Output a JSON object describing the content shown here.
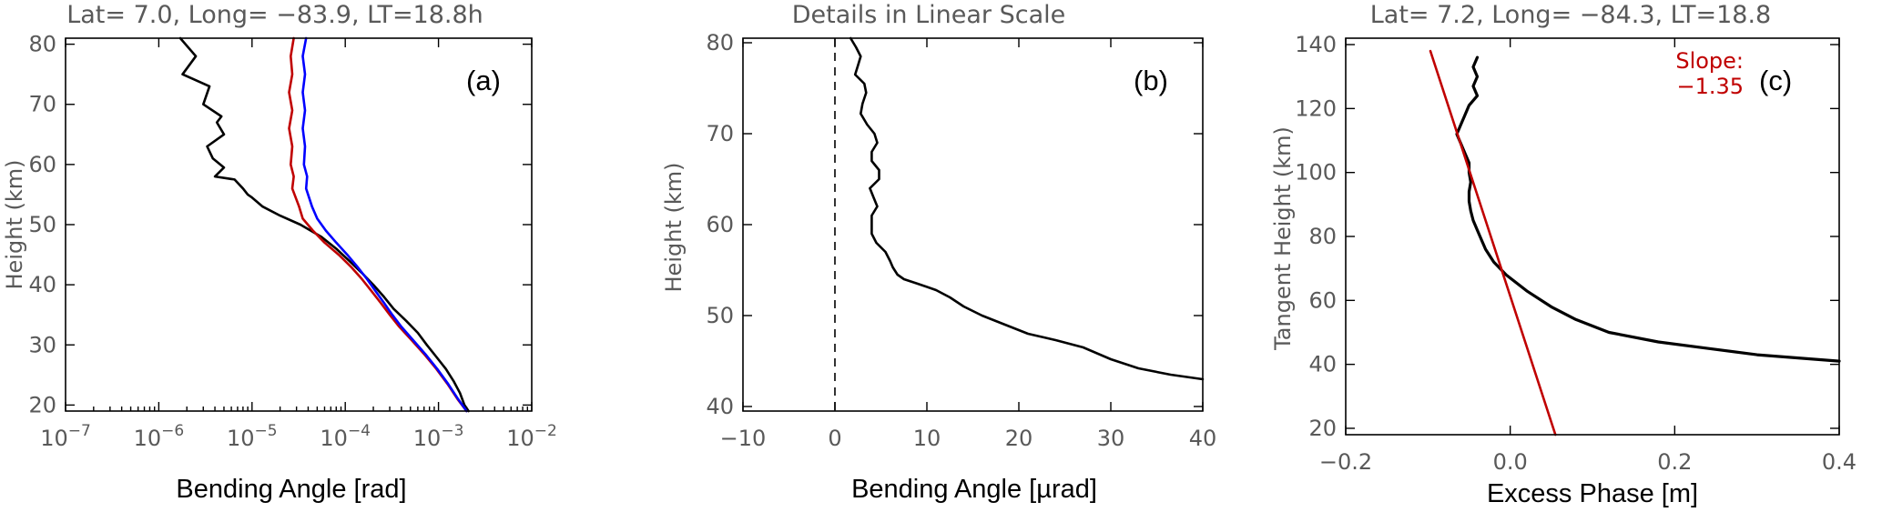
{
  "colors": {
    "black": "#000000",
    "red": "#c00000",
    "blue": "#0000ff",
    "grey_text": "#595959"
  },
  "chart_data": [
    {
      "type": "line",
      "title": "Lat= 7.0, Long= −83.9, LT=18.8h",
      "panel_label": "(a)",
      "xlabel": "Bending Angle [rad]",
      "ylabel": "Height (km)",
      "xscale": "log",
      "xlim": [
        1e-07,
        0.01
      ],
      "ylim": [
        19,
        81
      ],
      "x_ticks": [
        1e-07,
        1e-06,
        1e-05,
        0.0001,
        0.001,
        0.01
      ],
      "x_tick_labels": [
        {
          "base": "10",
          "exp": "−7"
        },
        {
          "base": "10",
          "exp": "−6"
        },
        {
          "base": "10",
          "exp": "−5"
        },
        {
          "base": "10",
          "exp": "−4"
        },
        {
          "base": "10",
          "exp": "−3"
        },
        {
          "base": "10",
          "exp": "−2"
        }
      ],
      "y_ticks": [
        20,
        30,
        40,
        50,
        60,
        70,
        80
      ],
      "y_tick_labels": [
        "20",
        "30",
        "40",
        "50",
        "60",
        "70",
        "80"
      ],
      "series": [
        {
          "color": "black",
          "points": [
            [
              1.7e-06,
              81
            ],
            [
              2.5e-06,
              78
            ],
            [
              1.8e-06,
              75
            ],
            [
              3.5e-06,
              73
            ],
            [
              3e-06,
              70
            ],
            [
              4.7e-06,
              68
            ],
            [
              4.2e-06,
              67
            ],
            [
              5e-06,
              65
            ],
            [
              3.3e-06,
              63
            ],
            [
              3.8e-06,
              61
            ],
            [
              5e-06,
              59.5
            ],
            [
              4e-06,
              58
            ],
            [
              6.5e-06,
              57.5
            ],
            [
              8e-06,
              56
            ],
            [
              9e-06,
              55
            ],
            [
              1e-05,
              54.5
            ],
            [
              1.3e-05,
              53
            ],
            [
              2e-05,
              51.5
            ],
            [
              3.3e-05,
              50
            ],
            [
              5.5e-05,
              48
            ],
            [
              8e-05,
              46
            ],
            [
              0.00011,
              44
            ],
            [
              0.00015,
              42
            ],
            [
              0.0002,
              40
            ],
            [
              0.00026,
              38
            ],
            [
              0.00033,
              36
            ],
            [
              0.00045,
              34
            ],
            [
              0.0006,
              32
            ],
            [
              0.00075,
              30
            ],
            [
              0.00095,
              28
            ],
            [
              0.0012,
              26
            ],
            [
              0.00145,
              24
            ],
            [
              0.0017,
              22
            ],
            [
              0.0019,
              20
            ],
            [
              0.0021,
              19
            ]
          ]
        },
        {
          "color": "red",
          "points": [
            [
              2.8e-05,
              81
            ],
            [
              2.6e-05,
              78
            ],
            [
              2.7e-05,
              75
            ],
            [
              2.5e-05,
              72
            ],
            [
              2.7e-05,
              69
            ],
            [
              2.5e-05,
              66
            ],
            [
              2.7e-05,
              63
            ],
            [
              2.6e-05,
              60
            ],
            [
              2.8e-05,
              58
            ],
            [
              2.7e-05,
              56
            ],
            [
              3.2e-05,
              53
            ],
            [
              3.5e-05,
              51
            ],
            [
              4.5e-05,
              49
            ],
            [
              6e-05,
              47
            ],
            [
              8.5e-05,
              45
            ],
            [
              0.000115,
              43
            ],
            [
              0.00015,
              41
            ],
            [
              0.00019,
              39
            ],
            [
              0.00024,
              37
            ],
            [
              0.0003,
              35
            ],
            [
              0.00038,
              33
            ],
            [
              0.0005,
              31
            ],
            [
              0.0007,
              28.5
            ],
            [
              0.00095,
              26
            ],
            [
              0.00125,
              23.5
            ],
            [
              0.0016,
              21
            ],
            [
              0.002,
              19
            ]
          ]
        },
        {
          "color": "blue",
          "points": [
            [
              3.8e-05,
              81
            ],
            [
              3.5e-05,
              78
            ],
            [
              3.7e-05,
              75
            ],
            [
              3.5e-05,
              72
            ],
            [
              3.7e-05,
              69
            ],
            [
              3.5e-05,
              66
            ],
            [
              3.7e-05,
              63
            ],
            [
              3.6e-05,
              60
            ],
            [
              3.9e-05,
              58
            ],
            [
              3.8e-05,
              56
            ],
            [
              4.4e-05,
              53
            ],
            [
              5e-05,
              51
            ],
            [
              6.2e-05,
              49
            ],
            [
              8e-05,
              47
            ],
            [
              0.000105,
              45
            ],
            [
              0.000135,
              43
            ],
            [
              0.00017,
              41
            ],
            [
              0.00021,
              39
            ],
            [
              0.00026,
              37
            ],
            [
              0.00032,
              35
            ],
            [
              0.0004,
              33
            ],
            [
              0.00052,
              31
            ],
            [
              0.00072,
              28.5
            ],
            [
              0.00097,
              26
            ],
            [
              0.00127,
              23.5
            ],
            [
              0.00162,
              21
            ],
            [
              0.002,
              19
            ]
          ]
        }
      ]
    },
    {
      "type": "line",
      "title": "Details in Linear Scale",
      "panel_label": "(b)",
      "xlabel": "Bending Angle [µrad]",
      "ylabel": "Height (km)",
      "xscale": "linear",
      "xlim": [
        -10,
        40
      ],
      "ylim": [
        39.5,
        80.5
      ],
      "x_ticks": [
        -10,
        0,
        10,
        20,
        30,
        40
      ],
      "x_tick_labels": [
        "−10",
        "0",
        "10",
        "20",
        "30",
        "40"
      ],
      "y_ticks": [
        40,
        50,
        60,
        70,
        80
      ],
      "y_tick_labels": [
        "40",
        "50",
        "60",
        "70",
        "80"
      ],
      "reference_line_x": 0,
      "series": [
        {
          "color": "black",
          "points": [
            [
              1.7,
              80.5
            ],
            [
              2.3,
              79.5
            ],
            [
              2.8,
              78.5
            ],
            [
              2.5,
              77.5
            ],
            [
              2.2,
              76.5
            ],
            [
              3.2,
              75.5
            ],
            [
              3.4,
              74.5
            ],
            [
              3.0,
              73.3
            ],
            [
              2.8,
              72.2
            ],
            [
              3.5,
              71
            ],
            [
              4.3,
              70
            ],
            [
              4.6,
              69
            ],
            [
              4.0,
              68
            ],
            [
              4.0,
              67
            ],
            [
              4.8,
              66
            ],
            [
              4.8,
              65
            ],
            [
              3.8,
              64
            ],
            [
              4.2,
              63
            ],
            [
              4.6,
              62
            ],
            [
              4.0,
              61
            ],
            [
              4.0,
              60
            ],
            [
              4.0,
              59
            ],
            [
              4.5,
              58
            ],
            [
              5.5,
              57
            ],
            [
              6.0,
              56
            ],
            [
              6.3,
              55.3
            ],
            [
              6.8,
              54.5
            ],
            [
              7.5,
              54
            ],
            [
              9.0,
              53.5
            ],
            [
              11.0,
              52.8
            ],
            [
              12.5,
              52.0
            ],
            [
              14.0,
              51.0
            ],
            [
              16.0,
              50.0
            ],
            [
              18.5,
              49.0
            ],
            [
              21.0,
              48.0
            ],
            [
              24.0,
              47.3
            ],
            [
              27.0,
              46.5
            ],
            [
              30.0,
              45.2
            ],
            [
              33.0,
              44.2
            ],
            [
              36.5,
              43.5
            ],
            [
              40.0,
              43.0
            ]
          ]
        }
      ]
    },
    {
      "type": "line",
      "title": "Lat= 7.2, Long= −84.3, LT=18.8",
      "panel_label": "(c)",
      "xlabel": "Excess Phase [m]",
      "ylabel": "Tangent Height (km)",
      "xscale": "linear",
      "xlim": [
        -0.2,
        0.4
      ],
      "ylim": [
        18,
        142
      ],
      "x_ticks": [
        -0.2,
        0.0,
        0.2,
        0.4
      ],
      "x_tick_labels": [
        "−0.2",
        "0.0",
        "0.2",
        "0.4"
      ],
      "y_ticks": [
        20,
        40,
        60,
        80,
        100,
        120,
        140
      ],
      "y_tick_labels": [
        "20",
        "40",
        "60",
        "80",
        "100",
        "120",
        "140"
      ],
      "annotation": {
        "label": "Slope:",
        "value": "−1.35",
        "color": "red"
      },
      "series": [
        {
          "color": "black",
          "points": [
            [
              -0.04,
              136
            ],
            [
              -0.045,
              133
            ],
            [
              -0.04,
              130
            ],
            [
              -0.045,
              127
            ],
            [
              -0.04,
              124
            ],
            [
              -0.05,
              121
            ],
            [
              -0.055,
              118
            ],
            [
              -0.06,
              115
            ],
            [
              -0.065,
              112
            ],
            [
              -0.06,
              109
            ],
            [
              -0.055,
              106
            ],
            [
              -0.05,
              103
            ],
            [
              -0.05,
              100
            ],
            [
              -0.048,
              97
            ],
            [
              -0.05,
              94
            ],
            [
              -0.05,
              91
            ],
            [
              -0.048,
              88
            ],
            [
              -0.045,
              85
            ],
            [
              -0.04,
              82
            ],
            [
              -0.035,
              79
            ],
            [
              -0.03,
              76
            ],
            [
              -0.02,
              72
            ],
            [
              -0.005,
              68
            ],
            [
              0.02,
              63
            ],
            [
              0.05,
              58
            ],
            [
              0.08,
              54
            ],
            [
              0.12,
              50
            ],
            [
              0.18,
              47
            ],
            [
              0.24,
              45
            ],
            [
              0.3,
              43
            ],
            [
              0.35,
              42
            ],
            [
              0.4,
              41
            ]
          ]
        },
        {
          "color": "red",
          "points": [
            [
              -0.097,
              138
            ],
            [
              0.055,
              18
            ]
          ]
        }
      ]
    }
  ]
}
